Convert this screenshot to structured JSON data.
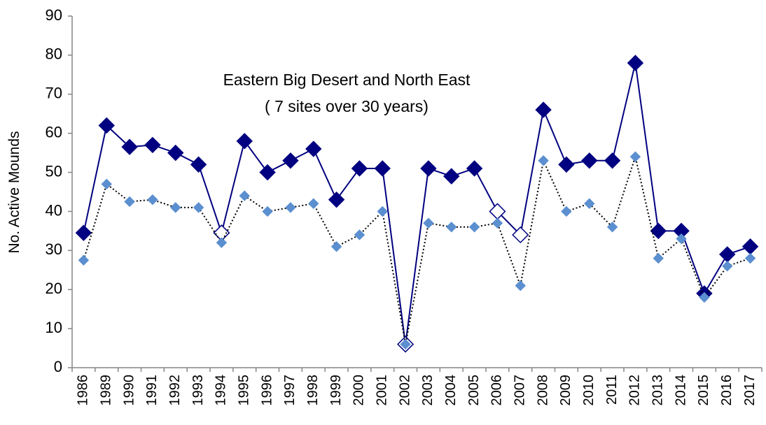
{
  "chart_data": {
    "type": "line",
    "annotations": [
      "Eastern Big Desert and North East",
      "( 7 sites over 30 years)"
    ],
    "y_label": "No. Active Mounds",
    "categories": [
      "1986",
      "1989",
      "1990",
      "1991",
      "1992",
      "1993",
      "1994",
      "1995",
      "1996",
      "1997",
      "1998",
      "1999",
      "2000",
      "2001",
      "2002",
      "2003",
      "2004",
      "2005",
      "2006",
      "2007",
      "2008",
      "2009",
      "2010",
      "2011",
      "2012",
      "2013",
      "2014",
      "2015",
      "2016",
      "2017"
    ],
    "series": [
      {
        "color": "#000080",
        "line_style": "solid",
        "marker_size": 11,
        "open_markers": [
          6,
          14,
          18,
          19
        ],
        "values": [
          34.5,
          62,
          56.5,
          57,
          55,
          52,
          34.5,
          58,
          50,
          53,
          56,
          43,
          51,
          51,
          6,
          51,
          49,
          51,
          40,
          34,
          66,
          52,
          53,
          53,
          78,
          35,
          35,
          19,
          29,
          31
        ]
      },
      {
        "color": "#5b8fd0",
        "line_color": "#000000",
        "line_style": "dotted",
        "marker_size": 7,
        "values": [
          27.5,
          47,
          42.5,
          43,
          41,
          41,
          32,
          44,
          40,
          41,
          42,
          31,
          34,
          40,
          6,
          37,
          36,
          36,
          37,
          21,
          53,
          40,
          42,
          36,
          54,
          28,
          33,
          18,
          26,
          28
        ]
      }
    ],
    "ylim": [
      0,
      90
    ],
    "yticks": [
      0,
      10,
      20,
      30,
      40,
      50,
      60,
      70,
      80,
      90
    ],
    "grid": false
  }
}
